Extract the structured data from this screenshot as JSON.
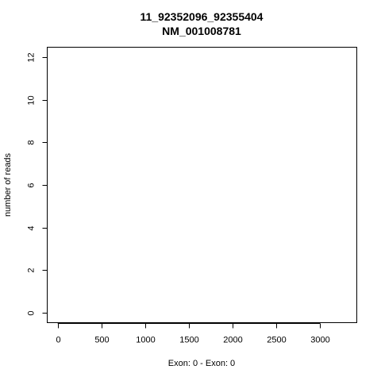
{
  "chart_data": {
    "type": "line",
    "title": "11_92352096_92355404",
    "subtitle": "NM_001008781",
    "xlabel": "Exon: 0 - Exon: 0",
    "ylabel": "number of reads",
    "xlim": [
      -120,
      3420
    ],
    "ylim": [
      -0.48,
      12.48
    ],
    "x_ticks": [
      0,
      500,
      1000,
      1500,
      2000,
      2500,
      3000
    ],
    "y_ticks": [
      0,
      2,
      4,
      6,
      8,
      10,
      12
    ],
    "series": [],
    "grid": false
  }
}
